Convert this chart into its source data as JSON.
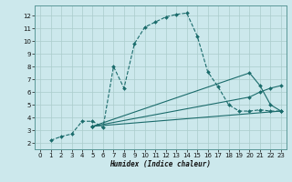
{
  "xlabel": "Humidex (Indice chaleur)",
  "bg_color": "#cce8ec",
  "grid_color": "#aacccc",
  "line_color": "#1a6b6b",
  "xlim": [
    -0.5,
    23.5
  ],
  "ylim": [
    1.5,
    12.8
  ],
  "xticks": [
    0,
    1,
    2,
    3,
    4,
    5,
    6,
    7,
    8,
    9,
    10,
    11,
    12,
    13,
    14,
    15,
    16,
    17,
    18,
    19,
    20,
    21,
    22,
    23
  ],
  "yticks": [
    2,
    3,
    4,
    5,
    6,
    7,
    8,
    9,
    10,
    11,
    12
  ],
  "main_curve": {
    "x": [
      1,
      2,
      3,
      4,
      5,
      6,
      7,
      8,
      9,
      10,
      11,
      12,
      13,
      14,
      15,
      16,
      17,
      18,
      19,
      20,
      21,
      22,
      23
    ],
    "y": [
      2.2,
      2.5,
      2.7,
      3.7,
      3.7,
      3.2,
      8.0,
      6.3,
      9.8,
      11.1,
      11.5,
      11.9,
      12.1,
      12.2,
      10.4,
      7.6,
      6.4,
      5.0,
      4.5,
      4.5,
      4.6,
      4.5,
      4.5
    ]
  },
  "fan_lines": [
    {
      "x": [
        5,
        23
      ],
      "y": [
        3.3,
        4.5
      ]
    },
    {
      "x": [
        5,
        20,
        21,
        22,
        23
      ],
      "y": [
        3.3,
        5.6,
        6.0,
        6.3,
        6.5
      ]
    },
    {
      "x": [
        5,
        20,
        21,
        22,
        23
      ],
      "y": [
        3.3,
        7.5,
        6.5,
        5.0,
        4.5
      ]
    }
  ]
}
